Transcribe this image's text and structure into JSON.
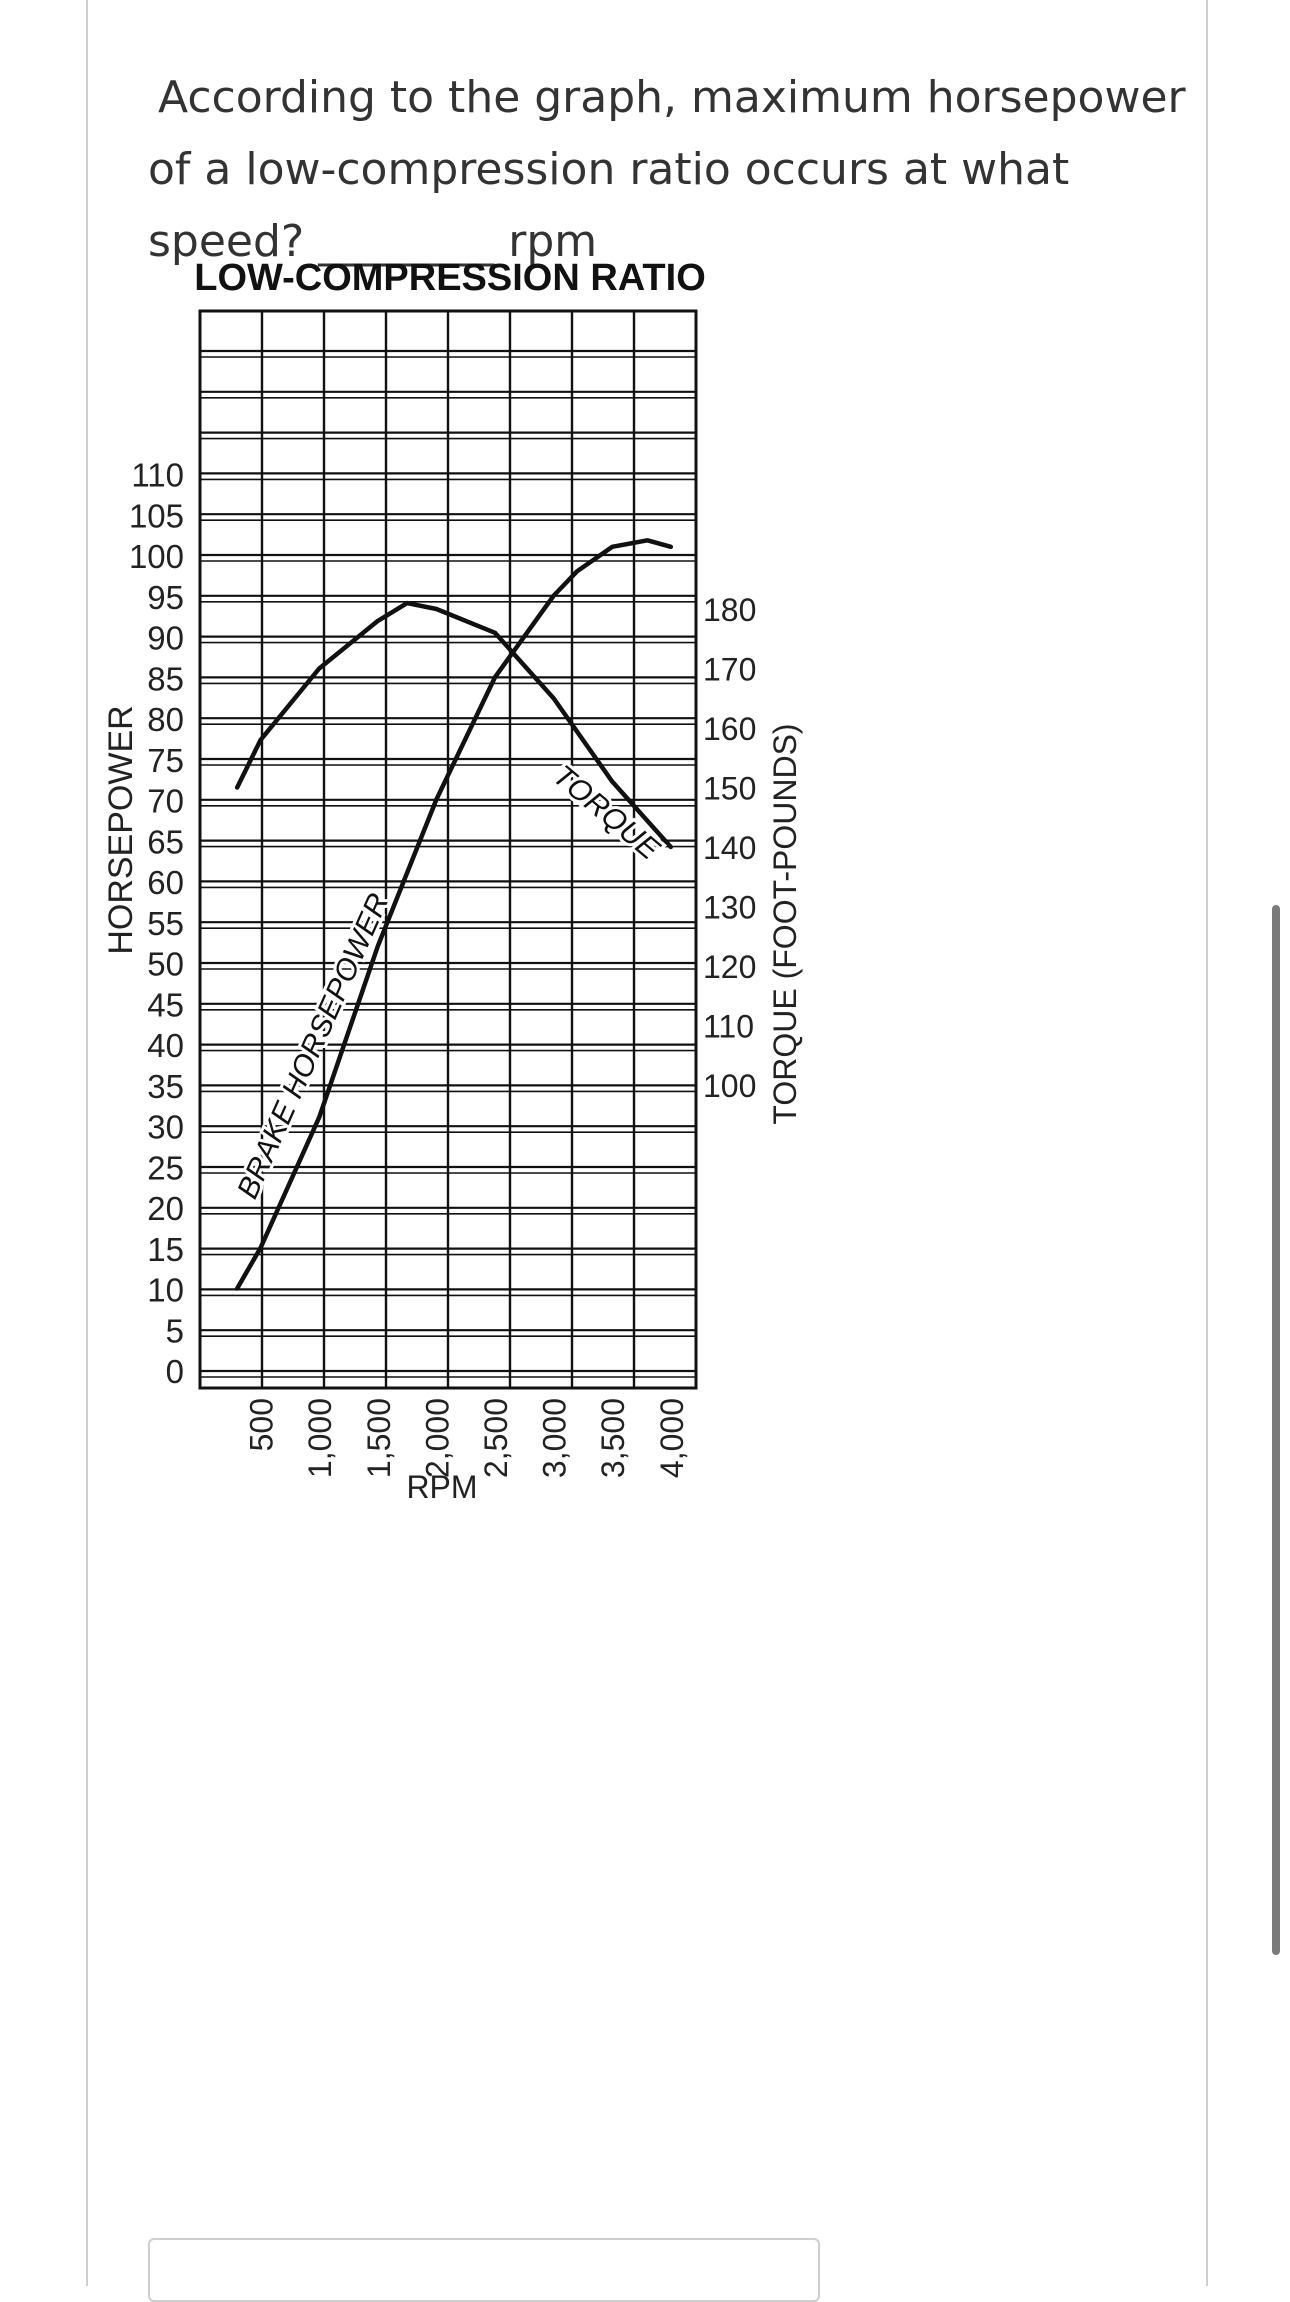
{
  "question": {
    "line1": "According to the graph, maximum horsepower",
    "line2": "of a low-compression ratio occurs at what",
    "line3_prefix": "speed? ",
    "blank": "________",
    "line3_suffix": " rpm"
  },
  "answer": {
    "value": ""
  },
  "chart_data": {
    "type": "line",
    "title": "LOW-COMPRESSION RATIO",
    "xlabel": "RPM",
    "ylabel_left": "HORSEPOWER",
    "ylabel_right": "TORQUE (FOOT-POUNDS)",
    "x_ticks": [
      500,
      1000,
      1500,
      2000,
      2500,
      3000,
      3500,
      4000
    ],
    "x_tick_labels": [
      "500",
      "1,000",
      "1,500",
      "2,000",
      "2,500",
      "3,000",
      "3,500",
      "4,000"
    ],
    "y_left_ticks": [
      0,
      5,
      10,
      15,
      20,
      25,
      30,
      35,
      40,
      45,
      50,
      55,
      60,
      65,
      70,
      75,
      80,
      85,
      90,
      95,
      100,
      105,
      110
    ],
    "y_right_ticks": [
      100,
      110,
      120,
      130,
      140,
      150,
      160,
      170,
      180
    ],
    "xlim": [
      0,
      4000
    ],
    "grid": true,
    "series": [
      {
        "name": "BRAKE HORSEPOWER",
        "axis": "left",
        "x": [
          300,
          500,
          1000,
          1500,
          2000,
          2500,
          3000,
          3200,
          3500,
          3800,
          4000
        ],
        "y": [
          10,
          15,
          31,
          52,
          70,
          85,
          95,
          98,
          101,
          101.8,
          101
        ]
      },
      {
        "name": "TORQUE",
        "axis": "right",
        "x": [
          300,
          500,
          1000,
          1500,
          1750,
          2000,
          2500,
          3000,
          3500,
          4000
        ],
        "y": [
          150,
          158,
          170,
          178,
          181,
          180,
          176,
          165,
          151,
          140
        ]
      }
    ]
  }
}
